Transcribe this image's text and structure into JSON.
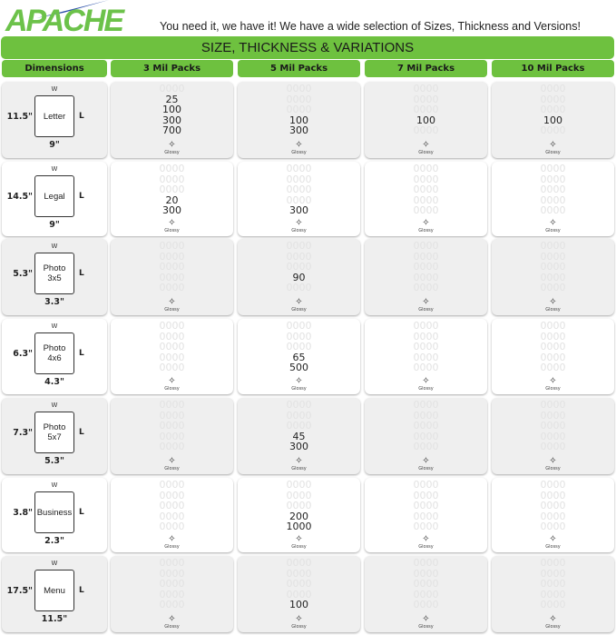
{
  "brand": {
    "logo": "APACHE",
    "tagline": "You need it, we have it! We have a wide selection of Sizes, Thickness and Versions!",
    "accent": "#6ec13f"
  },
  "title": "SIZE, THICKNESS & VARIATIONS",
  "columns": [
    "Dimensions",
    "3 Mil Packs",
    "5 Mil Packs",
    "7 Mil Packs",
    "10 Mil Packs"
  ],
  "glossy_label": "Glossy",
  "ghost": "0000",
  "dim_labels": {
    "w": "W",
    "l": "L"
  },
  "rows": [
    {
      "name": "Letter",
      "height": "11.5\"",
      "width": "9\"",
      "cells": [
        [
          "",
          "25",
          "100",
          "300",
          "700"
        ],
        [
          "",
          "",
          "",
          "100",
          "300"
        ],
        [
          "",
          "",
          "",
          "100",
          ""
        ],
        [
          "",
          "",
          "",
          "100",
          ""
        ]
      ]
    },
    {
      "name": "Legal",
      "height": "14.5\"",
      "width": "9\"",
      "cells": [
        [
          "",
          "",
          "",
          "20",
          "300"
        ],
        [
          "",
          "",
          "",
          "",
          "300"
        ],
        [
          "",
          "",
          "",
          "",
          ""
        ],
        [
          "",
          "",
          "",
          "",
          ""
        ]
      ]
    },
    {
      "name": "Photo 3x5",
      "height": "5.3\"",
      "width": "3.3\"",
      "cells": [
        [
          "",
          "",
          "",
          "",
          ""
        ],
        [
          "",
          "",
          "",
          "90",
          ""
        ],
        [
          "",
          "",
          "",
          "",
          ""
        ],
        [
          "",
          "",
          "",
          "",
          ""
        ]
      ]
    },
    {
      "name": "Photo 4x6",
      "height": "6.3\"",
      "width": "4.3\"",
      "cells": [
        [
          "",
          "",
          "",
          "",
          ""
        ],
        [
          "",
          "",
          "",
          "65",
          "500"
        ],
        [
          "",
          "",
          "",
          "",
          ""
        ],
        [
          "",
          "",
          "",
          "",
          ""
        ]
      ]
    },
    {
      "name": "Photo 5x7",
      "height": "7.3\"",
      "width": "5.3\"",
      "cells": [
        [
          "",
          "",
          "",
          "",
          ""
        ],
        [
          "",
          "",
          "",
          "45",
          "300"
        ],
        [
          "",
          "",
          "",
          "",
          ""
        ],
        [
          "",
          "",
          "",
          "",
          ""
        ]
      ]
    },
    {
      "name": "Business",
      "height": "3.8\"",
      "width": "2.3\"",
      "cells": [
        [
          "",
          "",
          "",
          "",
          ""
        ],
        [
          "",
          "",
          "",
          "200",
          "1000"
        ],
        [
          "",
          "",
          "",
          "",
          ""
        ],
        [
          "",
          "",
          "",
          "",
          ""
        ]
      ]
    },
    {
      "name": "Menu",
      "height": "17.5\"",
      "width": "11.5\"",
      "cells": [
        [
          "",
          "",
          "",
          "",
          ""
        ],
        [
          "",
          "",
          "",
          "",
          "100"
        ],
        [
          "",
          "",
          "",
          "",
          ""
        ],
        [
          "",
          "",
          "",
          "",
          ""
        ]
      ]
    }
  ]
}
